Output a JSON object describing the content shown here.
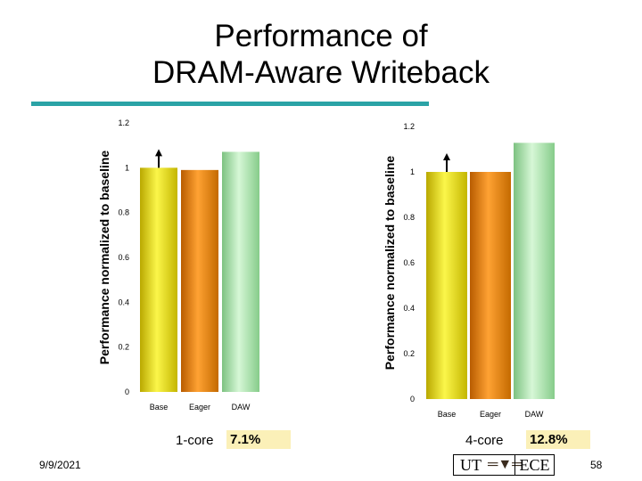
{
  "title": {
    "line1": "Performance of",
    "line2": "DRAM-Aware Writeback"
  },
  "chart_data": [
    {
      "type": "bar",
      "categories": [
        "Base",
        "Eager",
        "DAW"
      ],
      "values": [
        1.0,
        0.99,
        1.071
      ],
      "ylabel": "Performance normalized to baseline",
      "xlabel": "",
      "ylim": [
        0,
        1.2
      ],
      "yticks": [
        "0",
        "0.2",
        "0.4",
        "0.6",
        "0.8",
        "1",
        "1.2"
      ],
      "ytick_values": [
        0,
        0.2,
        0.4,
        0.6,
        0.8,
        1,
        1.2
      ],
      "bar_colors": [
        "#f0ea00",
        "#f08c00",
        "#a6e6a8"
      ],
      "arrow_on": "Base",
      "caption": "1-core",
      "improvement": "7.1%"
    },
    {
      "type": "bar",
      "categories": [
        "Base",
        "Eager",
        "DAW"
      ],
      "values": [
        1.0,
        1.0,
        1.128
      ],
      "ylabel": "Performance normalized to baseline",
      "xlabel": "",
      "ylim": [
        0,
        1.2
      ],
      "yticks": [
        "0",
        "0.2",
        "0.4",
        "0.6",
        "0.8",
        "1",
        "1.2"
      ],
      "ytick_values": [
        0,
        0.2,
        0.4,
        0.6,
        0.8,
        1,
        1.2
      ],
      "bar_colors": [
        "#f0ea00",
        "#f08c00",
        "#a6e6a8"
      ],
      "arrow_on": "Base",
      "caption": "4-core",
      "improvement": "12.8%"
    }
  ],
  "footer": {
    "date": "9/9/2021",
    "page": "58",
    "logo_left": "UT",
    "logo_right": "ECE",
    "logo_glyph": "═▼═"
  },
  "colors": {
    "accent_rule": "#2ba3a6",
    "callout_bg": "#fbf0b8"
  }
}
